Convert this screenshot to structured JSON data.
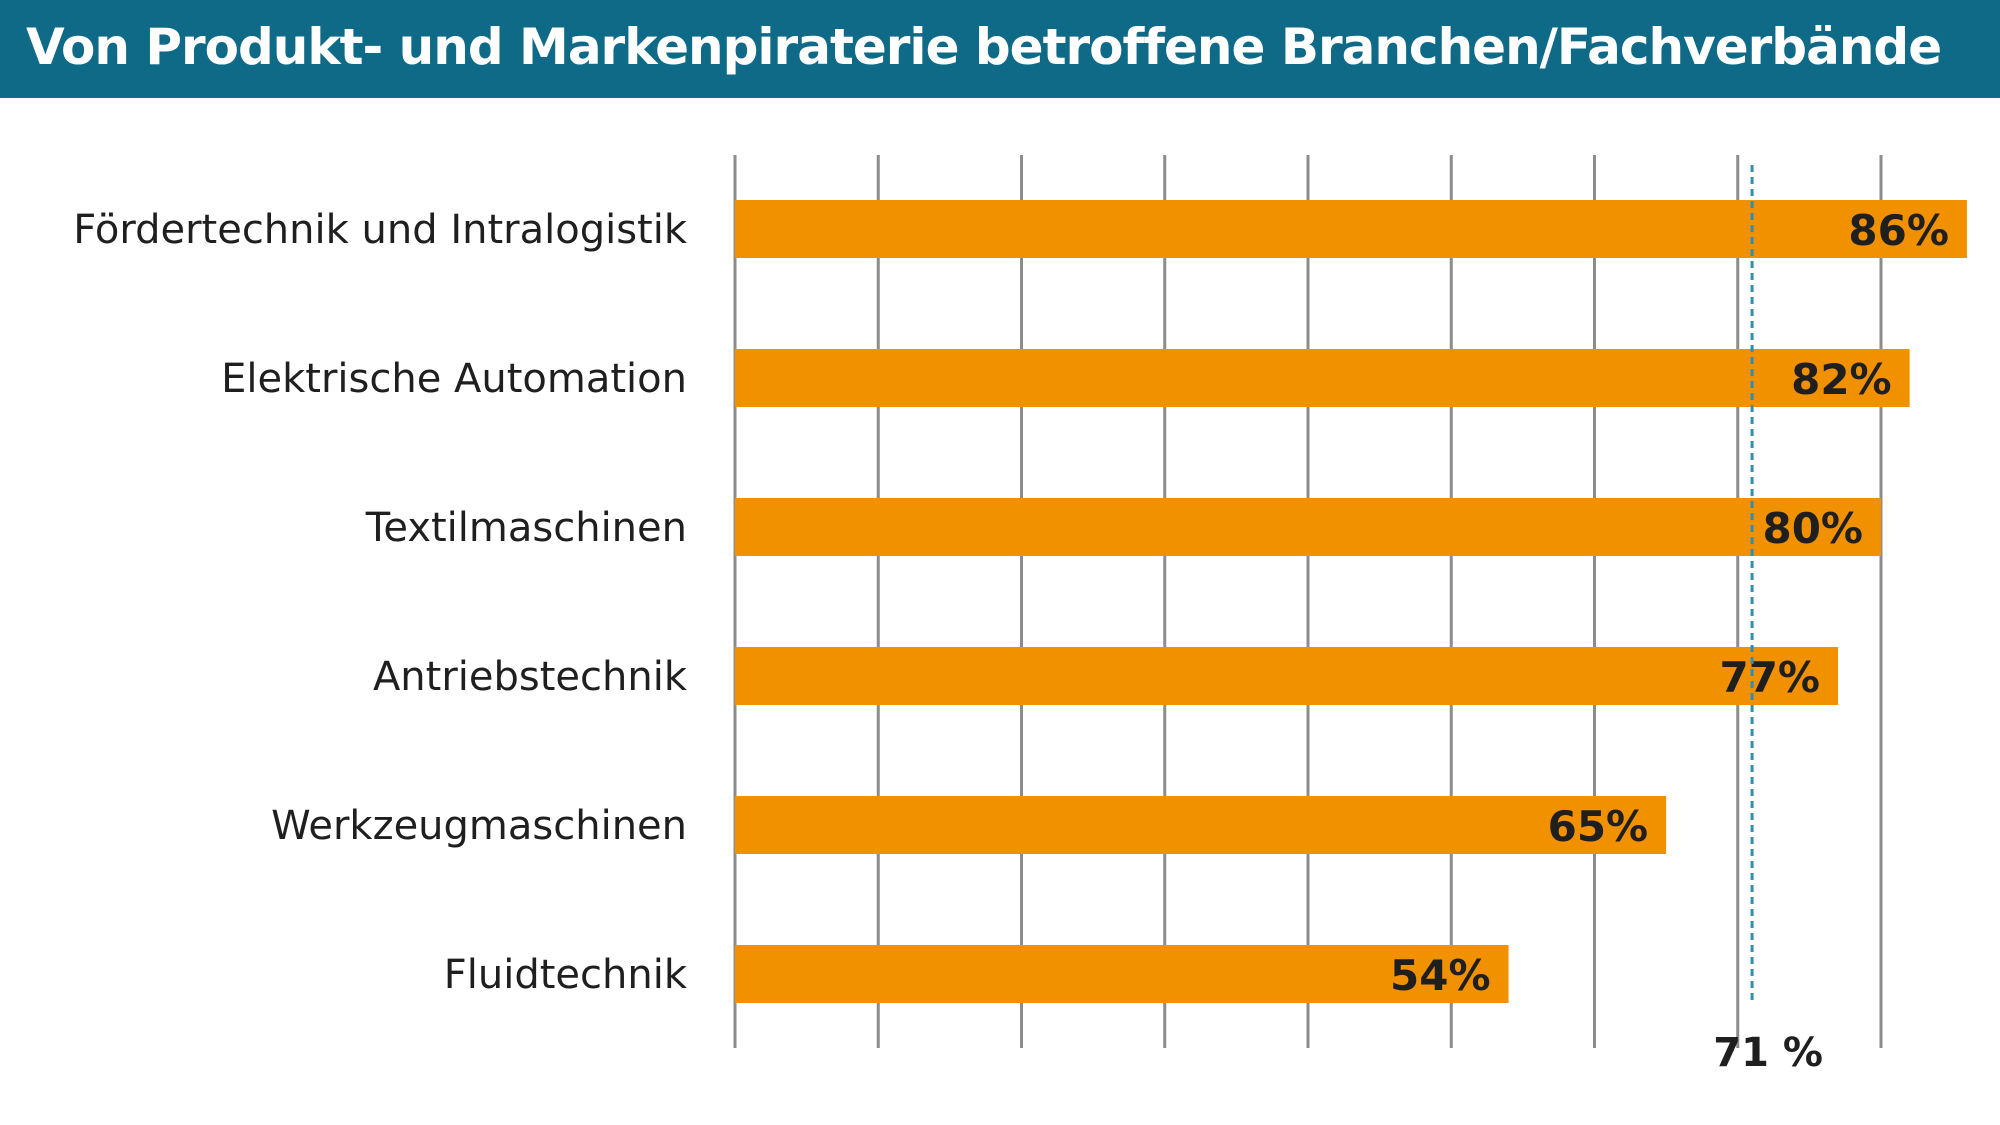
{
  "header": {
    "title": "Von Produkt- und Markenpiraterie betroffene Branchen/Fachverbände",
    "background_color": "#0f6a87"
  },
  "chart_data": {
    "type": "bar",
    "orientation": "horizontal",
    "categories": [
      "Fördertechnik und Intralogistik",
      "Elektrische Automation",
      "Textilmaschinen",
      "Antriebstechnik",
      "Werkzeugmaschinen",
      "Fluidtechnik"
    ],
    "values": [
      86,
      82,
      80,
      77,
      65,
      54
    ],
    "value_labels": [
      "86%",
      "82%",
      "80%",
      "77%",
      "65%",
      "54%"
    ],
    "bar_color": "#f29100",
    "xlim": [
      0,
      80
    ],
    "gridlines": [
      0,
      10,
      20,
      30,
      40,
      50,
      60,
      70,
      80
    ],
    "grid": true,
    "reference_line": {
      "value": 71,
      "label": "71 %",
      "color": "#2e8fb0",
      "style": "dashed"
    }
  }
}
